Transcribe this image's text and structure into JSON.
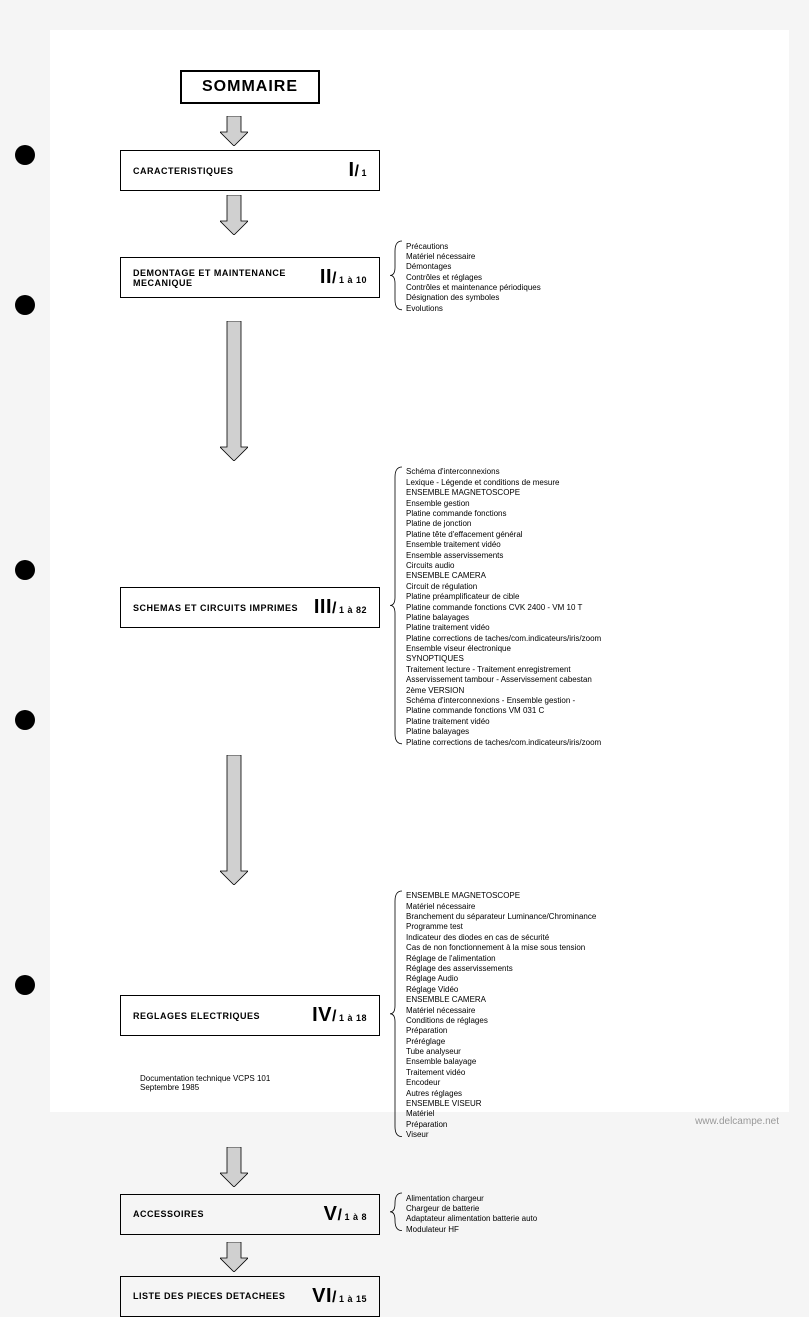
{
  "title": "SOMMAIRE",
  "sections": [
    {
      "label": "CARACTERISTIQUES",
      "roman": "I",
      "pages": "1",
      "items": [],
      "arrow_height": 30
    },
    {
      "label": "DEMONTAGE ET MAINTENANCE MECANIQUE",
      "roman": "II",
      "pages": "1 à 10",
      "items": [
        "Précautions",
        "Matériel nécessaire",
        "Démontages",
        "Contrôles et réglages",
        "Contrôles et maintenance périodiques",
        "Désignation des symboles",
        "Evolutions"
      ],
      "arrow_height": 40
    },
    {
      "label": "SCHEMAS ET CIRCUITS IMPRIMES",
      "roman": "III",
      "pages": "1 à 82",
      "items": [
        "Schéma d'interconnexions",
        "Lexique - Légende et conditions de mesure",
        "ENSEMBLE MAGNETOSCOPE",
        "Ensemble gestion",
        "Platine commande fonctions",
        "Platine de jonction",
        "Platine tête d'effacement général",
        "Ensemble traitement vidéo",
        "Ensemble asservissements",
        "Circuits audio",
        "ENSEMBLE CAMERA",
        "Circuit de régulation",
        "Platine préamplificateur de cible",
        "Platine commande fonctions CVK 2400 - VM 10 T",
        "Platine balayages",
        "Platine traitement vidéo",
        "Platine corrections de taches/com.indicateurs/iris/zoom",
        "Ensemble viseur électronique",
        "SYNOPTIQUES",
        "Traitement lecture - Traitement enregistrement",
        "Asservissement tambour - Asservissement cabestan",
        "2ème VERSION",
        "Schéma d'interconnexions - Ensemble gestion -",
        "Platine commande fonctions VM 031 C",
        "Platine traitement vidéo",
        "Platine balayages",
        "Platine corrections de taches/com.indicateurs/iris/zoom"
      ],
      "arrow_height": 140
    },
    {
      "label": "REGLAGES ELECTRIQUES",
      "roman": "IV",
      "pages": "1 à 18",
      "items": [
        "ENSEMBLE MAGNETOSCOPE",
        "Matériel nécessaire",
        "Branchement du séparateur Luminance/Chrominance",
        "Programme test",
        "Indicateur des diodes en cas de sécurité",
        "Cas de non fonctionnement à la mise sous tension",
        "Réglage de l'alimentation",
        "Réglage des asservissements",
        "Réglage Audio",
        "Réglage Vidéo",
        "ENSEMBLE CAMERA",
        "Matériel nécessaire",
        "Conditions de réglages",
        "Préparation",
        "Préréglage",
        "Tube analyseur",
        "Ensemble balayage",
        "Traitement vidéo",
        "Encodeur",
        "Autres réglages",
        "ENSEMBLE VISEUR",
        "Matériel",
        "Préparation",
        "Viseur"
      ],
      "arrow_height": 130
    },
    {
      "label": "ACCESSOIRES",
      "roman": "V",
      "pages": "1 à 8",
      "items": [
        "Alimentation chargeur",
        "Chargeur de batterie",
        "Adaptateur alimentation batterie auto",
        "Modulateur HF"
      ],
      "arrow_height": 40
    },
    {
      "label": "LISTE DES PIECES DETACHEES",
      "roman": "VI",
      "pages": "1 à 15",
      "items": [],
      "arrow_height": 30
    }
  ],
  "footer": {
    "line1": "Documentation technique VCPS 101",
    "line2": "Septembre 1985"
  },
  "watermark": "www.delcampe.net",
  "styles": {
    "arrow_fill": "#d0d0d0",
    "arrow_stroke": "#000000",
    "box_border": "#000000",
    "background": "#ffffff",
    "text_color": "#000000"
  }
}
